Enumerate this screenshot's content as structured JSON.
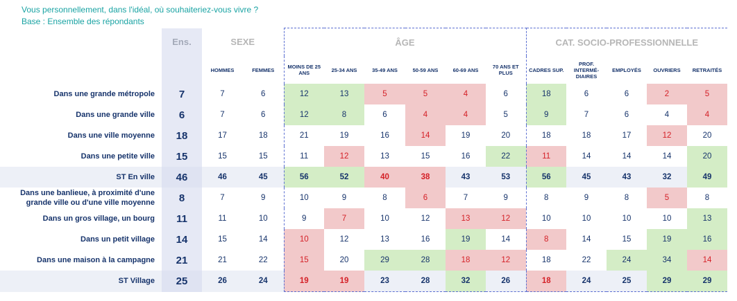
{
  "header": {
    "question": "Vous personnellement, dans l'idéal, où souhaiteriez-vous vivre ?",
    "base": "Base : Ensemble des répondants"
  },
  "groups": {
    "ens": "Ens.",
    "sexe": "SEXE",
    "age": "ÂGE",
    "csp": "CAT. SOCIO-PROFESSIONNELLE"
  },
  "columns": [
    "HOMMES",
    "FEMMES",
    "MOINS DE 25 ANS",
    "25-34 ANS",
    "35-49 ANS",
    "50-59 ANS",
    "60-69 ANS",
    "70 ANS ET PLUS",
    "CADRES SUP.",
    "PROF. INTERMÉ-DIAIRES",
    "EMPLOYÉS",
    "OUVRIERS",
    "RETRAITÉS"
  ],
  "rows": [
    {
      "label": "Dans une grande métropole",
      "ens": "7",
      "values": [
        "7",
        "6",
        "12",
        "13",
        "5",
        "5",
        "4",
        "6",
        "18",
        "6",
        "6",
        "2",
        "5"
      ],
      "flags": [
        "",
        "",
        "up",
        "up",
        "dn",
        "dn",
        "dn",
        "",
        "up",
        "",
        "",
        "dn",
        "dn"
      ],
      "st": false
    },
    {
      "label": "Dans une grande ville",
      "ens": "6",
      "values": [
        "7",
        "6",
        "12",
        "8",
        "6",
        "4",
        "4",
        "5",
        "9",
        "7",
        "6",
        "4",
        "4"
      ],
      "flags": [
        "",
        "",
        "up",
        "up",
        "",
        "dn",
        "dn",
        "",
        "up",
        "",
        "",
        "",
        "dn"
      ],
      "st": false
    },
    {
      "label": "Dans une ville moyenne",
      "ens": "18",
      "values": [
        "17",
        "18",
        "21",
        "19",
        "16",
        "14",
        "19",
        "20",
        "18",
        "18",
        "17",
        "12",
        "20"
      ],
      "flags": [
        "",
        "",
        "",
        "",
        "",
        "dn",
        "",
        "",
        "",
        "",
        "",
        "dn",
        ""
      ],
      "st": false
    },
    {
      "label": "Dans une petite ville",
      "ens": "15",
      "values": [
        "15",
        "15",
        "11",
        "12",
        "13",
        "15",
        "16",
        "22",
        "11",
        "14",
        "14",
        "14",
        "20"
      ],
      "flags": [
        "",
        "",
        "",
        "dn",
        "",
        "",
        "",
        "up",
        "dn",
        "",
        "",
        "",
        "up"
      ],
      "st": false
    },
    {
      "label": "ST En ville",
      "ens": "46",
      "values": [
        "46",
        "45",
        "56",
        "52",
        "40",
        "38",
        "43",
        "53",
        "56",
        "45",
        "43",
        "32",
        "49"
      ],
      "flags": [
        "",
        "",
        "up",
        "up",
        "dn",
        "dn",
        "",
        "",
        "up",
        "",
        "",
        "",
        "up"
      ],
      "st": true
    },
    {
      "label": "Dans une banlieue, à proximité d'une grande ville ou d'une ville moyenne",
      "ens": "8",
      "values": [
        "7",
        "9",
        "10",
        "9",
        "8",
        "6",
        "7",
        "9",
        "8",
        "9",
        "8",
        "5",
        "8"
      ],
      "flags": [
        "",
        "",
        "",
        "",
        "",
        "dn",
        "",
        "",
        "",
        "",
        "",
        "dn",
        ""
      ],
      "st": false
    },
    {
      "label": "Dans un gros village, un bourg",
      "ens": "11",
      "values": [
        "11",
        "10",
        "9",
        "7",
        "10",
        "12",
        "13",
        "12",
        "10",
        "10",
        "10",
        "10",
        "13"
      ],
      "flags": [
        "",
        "",
        "",
        "dn",
        "",
        "",
        "dn",
        "dn",
        "",
        "",
        "",
        "",
        "up"
      ],
      "st": false
    },
    {
      "label": "Dans un petit village",
      "ens": "14",
      "values": [
        "15",
        "14",
        "10",
        "12",
        "13",
        "16",
        "19",
        "14",
        "8",
        "14",
        "15",
        "19",
        "16"
      ],
      "flags": [
        "",
        "",
        "dn",
        "",
        "",
        "",
        "up",
        "",
        "dn",
        "",
        "",
        "up",
        "up"
      ],
      "st": false
    },
    {
      "label": "Dans une maison à la campagne",
      "ens": "21",
      "values": [
        "21",
        "22",
        "15",
        "20",
        "29",
        "28",
        "18",
        "12",
        "18",
        "22",
        "24",
        "34",
        "14"
      ],
      "flags": [
        "",
        "",
        "dn",
        "",
        "up",
        "up",
        "dn",
        "dn",
        "",
        "",
        "up",
        "up",
        "dn"
      ],
      "st": false
    },
    {
      "label": "ST Village",
      "ens": "25",
      "values": [
        "26",
        "24",
        "19",
        "19",
        "23",
        "28",
        "32",
        "26",
        "18",
        "24",
        "25",
        "29",
        "29"
      ],
      "flags": [
        "",
        "",
        "dn",
        "dn",
        "",
        "",
        "up",
        "",
        "dn",
        "",
        "",
        "up",
        "up"
      ],
      "st": true
    }
  ],
  "colors": {
    "up": "#d4edc6",
    "down": "#f2c9ca",
    "down_text": "#d42027",
    "ens_bg": "#e6e9f5",
    "header": "#19a3a3"
  }
}
